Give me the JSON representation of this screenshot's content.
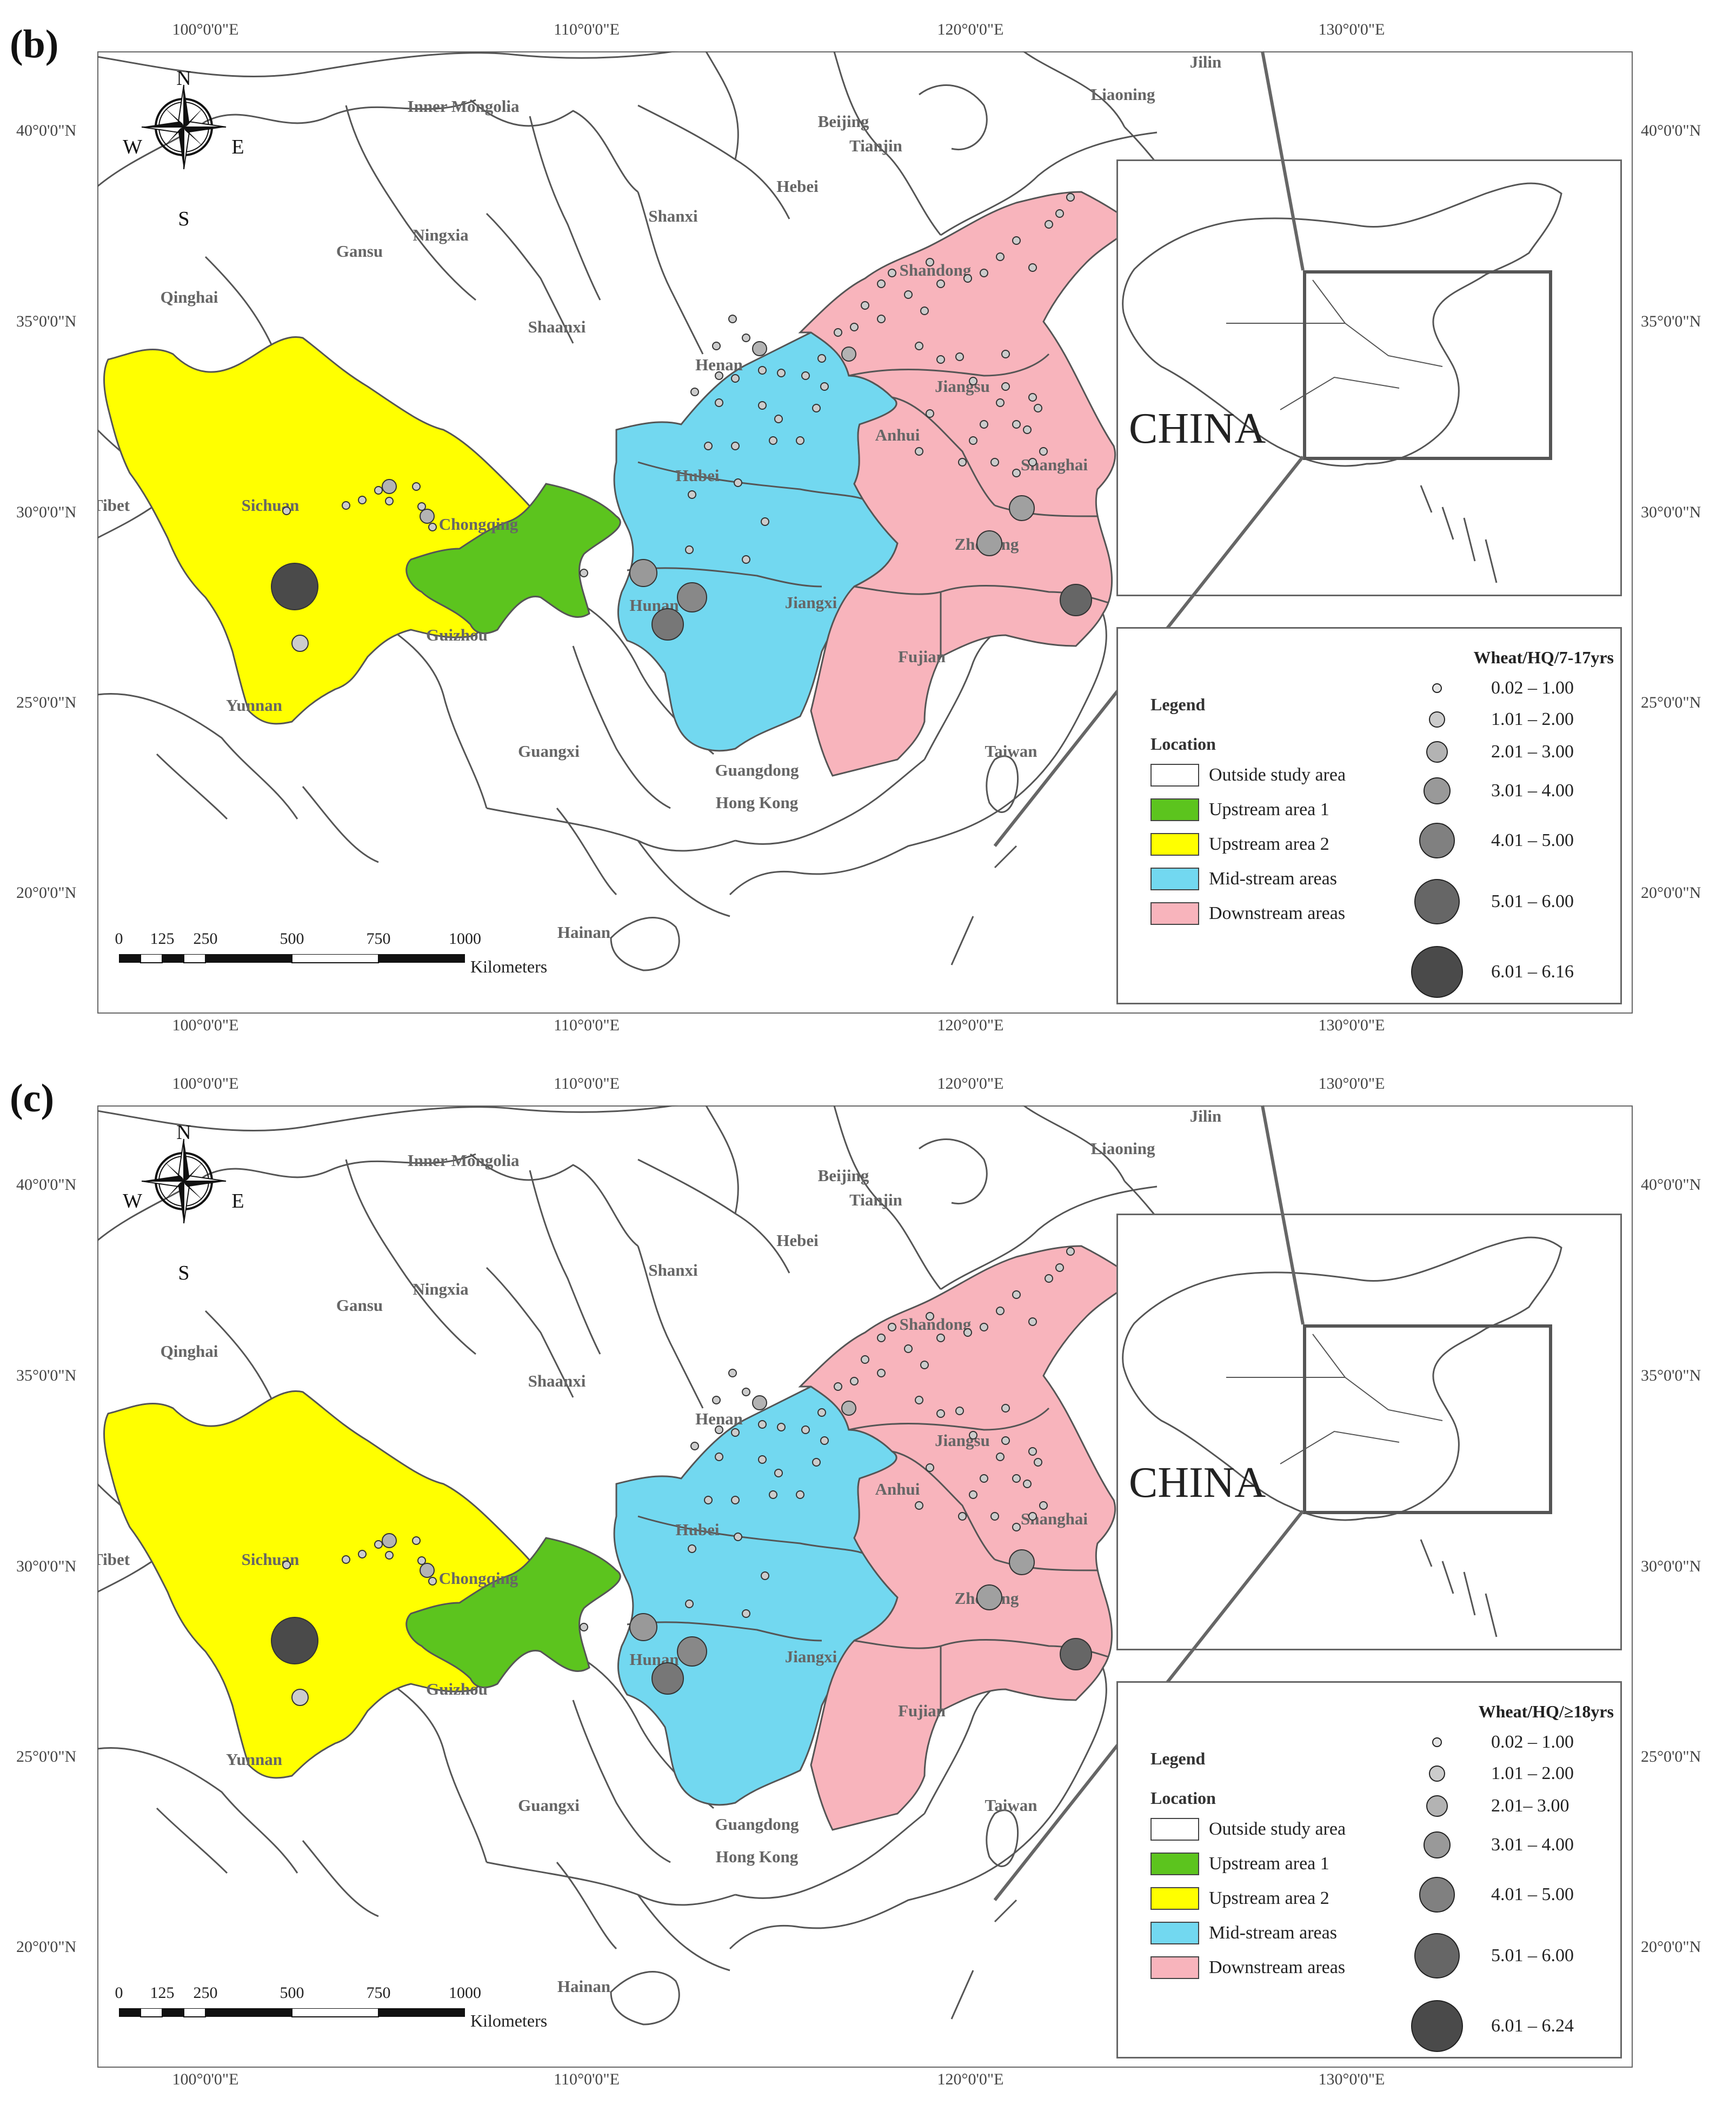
{
  "panels": [
    {
      "id": "b",
      "label": "(b)",
      "inset_label": "CHINA",
      "legend": {
        "title": "Legend",
        "subtitle": "Location",
        "items": [
          {
            "label": "Outside study area",
            "color": "#ffffff"
          },
          {
            "label": "Upstream area 1",
            "color": "#5cc41e"
          },
          {
            "label": "Upstream area 2",
            "color": "#ffff00"
          },
          {
            "label": "Mid-stream areas",
            "color": "#72d8f0"
          },
          {
            "label": "Downstream areas",
            "color": "#f8b4bc"
          }
        ],
        "size_title": "Wheat/HQ/7-17yrs",
        "size_classes": [
          "0.02 – 1.00",
          "1.01 – 2.00",
          "2.01 – 3.00",
          "3.01 – 4.00",
          "4.01 – 5.00",
          "5.01 – 6.00",
          "6.01 – 6.16"
        ]
      }
    },
    {
      "id": "c",
      "label": "(c)",
      "inset_label": "CHINA",
      "legend": {
        "title": "Legend",
        "subtitle": "Location",
        "items": [
          {
            "label": "Outside study area",
            "color": "#ffffff"
          },
          {
            "label": "Upstream area 1",
            "color": "#5cc41e"
          },
          {
            "label": "Upstream area 2",
            "color": "#ffff00"
          },
          {
            "label": "Mid-stream areas",
            "color": "#72d8f0"
          },
          {
            "label": "Downstream areas",
            "color": "#f8b4bc"
          }
        ],
        "size_title": "Wheat/HQ/≥18yrs",
        "size_classes": [
          "0.02 – 1.00",
          "1.01 – 2.00",
          "2.01– 3.00",
          "3.01 – 4.00",
          "4.01 – 5.00",
          "5.01 – 6.00",
          "6.01 – 6.24"
        ]
      }
    }
  ],
  "longitude_labels": [
    "100°0'0\"E",
    "110°0'0\"E",
    "120°0'0\"E",
    "130°0'0\"E"
  ],
  "latitude_labels": [
    "40°0'0\"N",
    "35°0'0\"N",
    "30°0'0\"N",
    "25°0'0\"N",
    "20°0'0\"N"
  ],
  "compass": {
    "n": "N",
    "s": "S",
    "e": "E",
    "w": "W"
  },
  "scale_bar": {
    "ticks": [
      "0",
      "125",
      "250",
      "500",
      "750",
      "1000"
    ],
    "unit": "Kilometers"
  },
  "place_labels": [
    "Inner Mongolia",
    "Liaoning",
    "Jilin",
    "Beijing",
    "Tianjin",
    "Hebei",
    "Shanxi",
    "Gansu",
    "Ningxia",
    "Qinghai",
    "Shandong",
    "Shaanxi",
    "Henan",
    "Jiangsu",
    "Anhui",
    "Hubei",
    "Shanghai",
    "Sichuan",
    "Tibet",
    "Chongqing",
    "Zhejiang",
    "Hunan",
    "Jiangxi",
    "Guizhou",
    "Fujian",
    "Yunnan",
    "Guangxi",
    "Guangdong",
    "Hong Kong",
    "Taiwan",
    "Hainan"
  ],
  "colors": {
    "upstream1": "#5cc41e",
    "upstream2": "#ffff00",
    "midstream": "#72d8f0",
    "downstream": "#f8b4bc",
    "border": "#555555"
  },
  "circle_shades": [
    "#e6e6e6",
    "#cccccc",
    "#b3b3b3",
    "#999999",
    "#808080",
    "#666666",
    "#4a4a4a"
  ]
}
